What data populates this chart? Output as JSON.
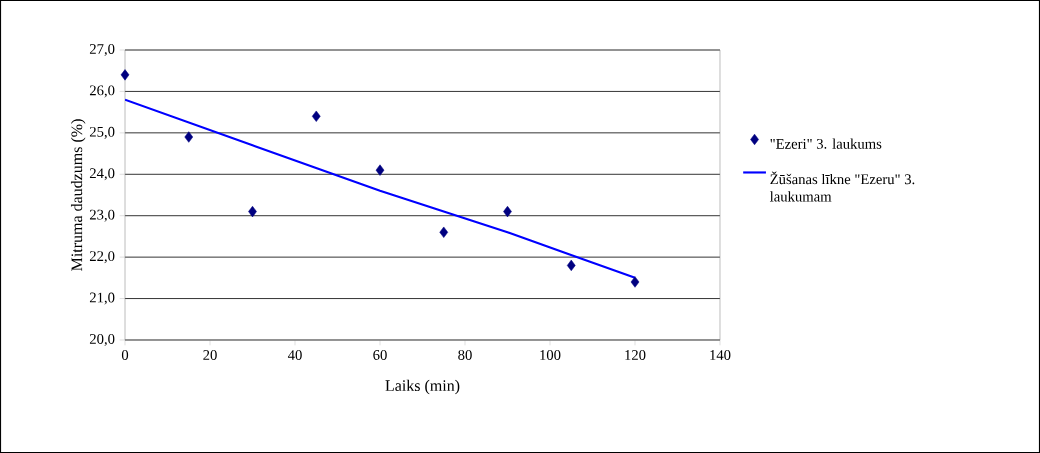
{
  "chart_data": {
    "type": "scatter",
    "xlabel": "Laiks (min)",
    "ylabel": "Mitruma daudzums (%)",
    "xlim": [
      0,
      140
    ],
    "xticks": [
      0,
      20,
      40,
      60,
      80,
      100,
      120,
      140
    ],
    "ylim": [
      20,
      27
    ],
    "yticks": [
      {
        "value": 20,
        "label": "20,0"
      },
      {
        "value": 21,
        "label": "21,0"
      },
      {
        "value": 22,
        "label": "22,0"
      },
      {
        "value": 23,
        "label": "23,0"
      },
      {
        "value": 24,
        "label": "24,0"
      },
      {
        "value": 25,
        "label": "25,0"
      },
      {
        "value": 26,
        "label": "26,0"
      },
      {
        "value": 27,
        "label": "27,0"
      }
    ],
    "grid": "y",
    "legend": "right",
    "series": [
      {
        "name": "\"Ezeri\" 3. laukums",
        "marker": "diamond",
        "color": "#000080",
        "x": [
          0,
          15,
          30,
          45,
          60,
          75,
          90,
          105,
          120
        ],
        "values": [
          26.4,
          24.9,
          23.1,
          25.4,
          24.1,
          22.6,
          23.1,
          21.8,
          21.4
        ]
      },
      {
        "name": "Žūšanas līkne \"Ezeru\" 3. laukumam",
        "type": "line",
        "marker": "none",
        "color": "#0000ff",
        "x": [
          0,
          30,
          60,
          90,
          120
        ],
        "values": [
          25.8,
          24.7,
          23.6,
          22.6,
          21.5
        ]
      }
    ]
  }
}
